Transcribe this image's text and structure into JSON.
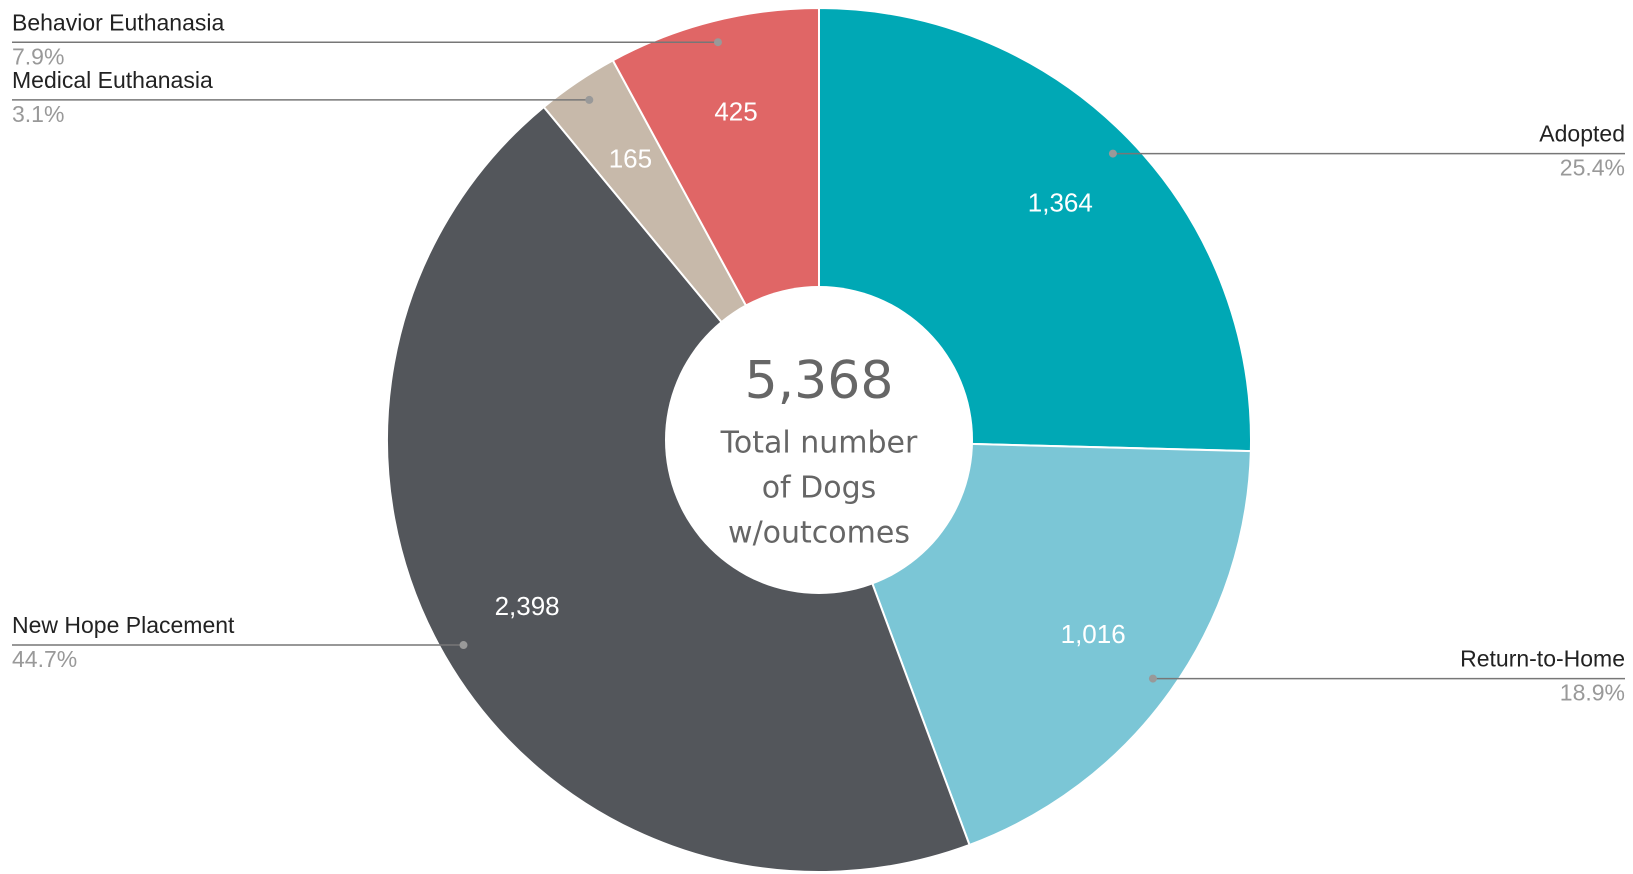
{
  "chart_data": {
    "type": "pie",
    "categories": [
      "Adopted",
      "Return-to-Home",
      "New Hope Placement",
      "Medical Euthanasia",
      "Behavior Euthanasia"
    ],
    "values": [
      1364,
      1016,
      2398,
      165,
      425
    ],
    "value_labels": [
      "1,364",
      "1,016",
      "2,398",
      "165",
      "425"
    ],
    "percent_labels": [
      "25.4%",
      "18.9%",
      "44.7%",
      "3.1%",
      "7.9%"
    ],
    "colors": [
      "#00a8b5",
      "#7bc6d6",
      "#53565b",
      "#c7b9aa",
      "#e06666"
    ],
    "total": {
      "value": 5368,
      "label": "5,368"
    },
    "center_caption": [
      "Total number",
      "of Dogs",
      "w/outcomes"
    ]
  }
}
